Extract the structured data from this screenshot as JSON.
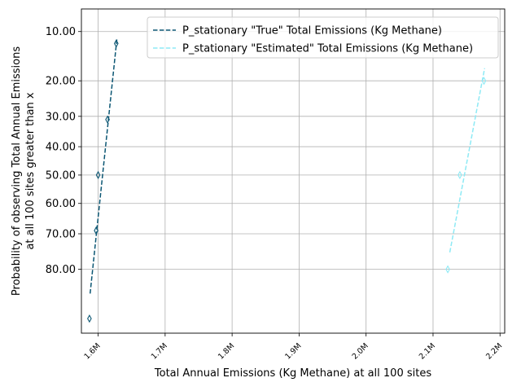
{
  "chart_data": {
    "type": "line",
    "title": "",
    "xlabel": "Total Annual Emissions (Kg Methane) at all 100 sites",
    "ylabel_lines": [
      "Probability of observing Total Annual Emissions",
      "at all 100 sites greater than x"
    ],
    "y_scale": "probit",
    "y_inverted": true,
    "grid": true,
    "legend_position": "top-right",
    "x_ticks": [
      {
        "value": 1600000,
        "label": "1.6M"
      },
      {
        "value": 1700000,
        "label": "1.7M"
      },
      {
        "value": 1800000,
        "label": "1.8M"
      },
      {
        "value": 1900000,
        "label": "1.9M"
      },
      {
        "value": 2000000,
        "label": "2.0M"
      },
      {
        "value": 2100000,
        "label": "2.1M"
      },
      {
        "value": 2200000,
        "label": "2.2M"
      }
    ],
    "y_ticks": [
      {
        "value": 10,
        "label": "10.00"
      },
      {
        "value": 20,
        "label": "20.00"
      },
      {
        "value": 30,
        "label": "30.00"
      },
      {
        "value": 40,
        "label": "40.00"
      },
      {
        "value": 50,
        "label": "50.00"
      },
      {
        "value": 60,
        "label": "60.00"
      },
      {
        "value": 70,
        "label": "70.00"
      },
      {
        "value": 80,
        "label": "80.00"
      }
    ],
    "xlim": [
      1575000,
      2207000
    ],
    "ylim": [
      6.9,
      92.1
    ],
    "series": [
      {
        "name": "P_stationary \"True\" Total Emissions (Kg Methane)",
        "color": "#0b5673",
        "fit_line": [
          {
            "x": 1588000,
            "y": 85.5
          },
          {
            "x": 1628000,
            "y": 11.2
          }
        ],
        "points": [
          {
            "x": 1587000,
            "y": 90
          },
          {
            "x": 1597000,
            "y": 69
          },
          {
            "x": 1600000,
            "y": 50
          },
          {
            "x": 1614000,
            "y": 31
          },
          {
            "x": 1627000,
            "y": 12
          }
        ]
      },
      {
        "name": "P_stationary \"Estimated\" Total Emissions (Kg Methane)",
        "color": "#8eeaf5",
        "fit_line": [
          {
            "x": 2125000,
            "y": 75.5
          },
          {
            "x": 2177000,
            "y": 17
          }
        ],
        "points": [
          {
            "x": 2122000,
            "y": 80
          },
          {
            "x": 2140000,
            "y": 50
          },
          {
            "x": 2176000,
            "y": 20
          }
        ]
      }
    ]
  }
}
